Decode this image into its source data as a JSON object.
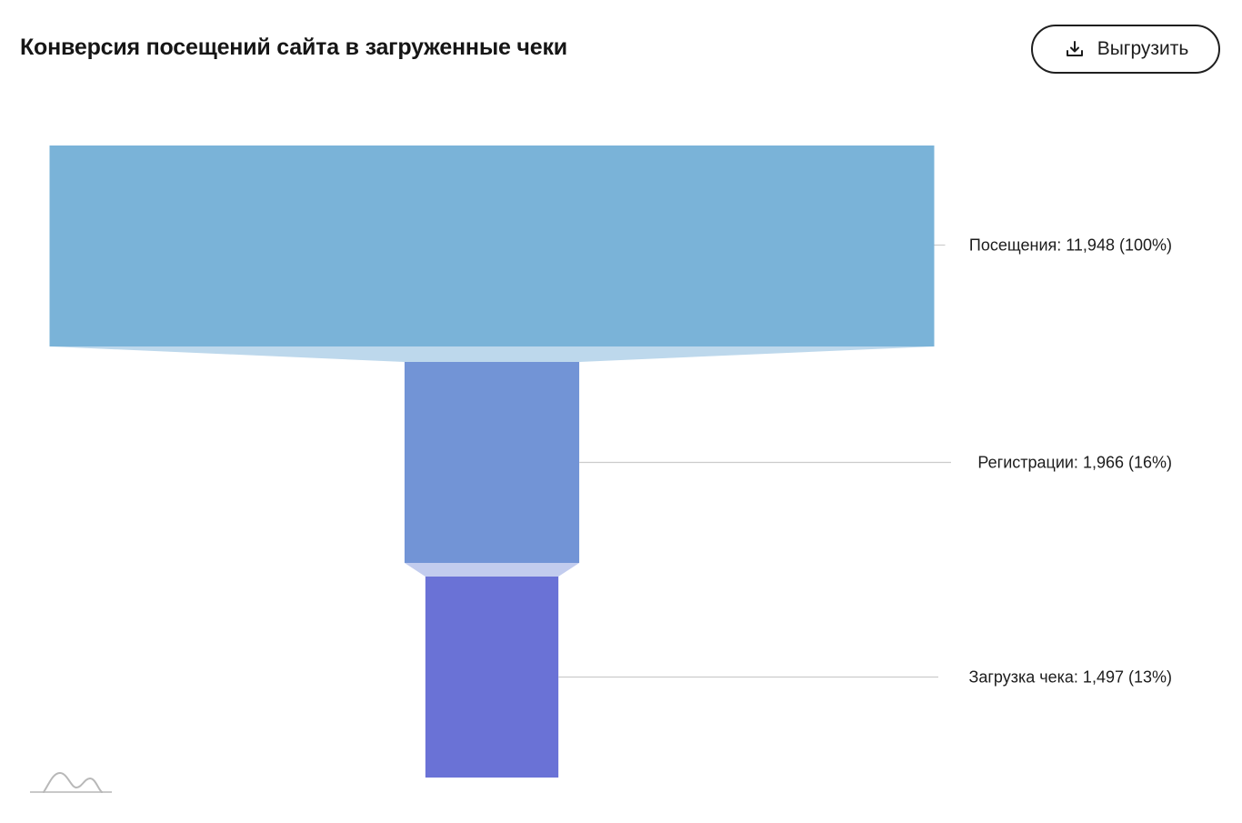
{
  "header": {
    "title": "Конверсия посещений сайта в загруженные чеки",
    "export_label": "Выгрузить",
    "export_icon": "download-icon"
  },
  "chart_data": {
    "type": "funnel",
    "title": "Конверсия посещений сайта в загруженные чеки",
    "stages": [
      {
        "name": "Посещения",
        "value": 11948,
        "percent": 100,
        "label": "Посещения: 11,948 (100%)",
        "color": "#7ab3d8"
      },
      {
        "name": "Регистрации",
        "value": 1966,
        "percent": 16,
        "label": "Регистрации: 1,966 (16%)",
        "color": "#7294d6"
      },
      {
        "name": "Загрузка чека",
        "value": 1497,
        "percent": 13,
        "label": "Загрузка чека: 1,497 (13%)",
        "color": "#6a72d6"
      }
    ],
    "connector_colors": [
      "#bdd8ec",
      "#c2ccee"
    ],
    "label_line_color": "#cccccc",
    "watermark_icon": "chart-logo-icon"
  }
}
